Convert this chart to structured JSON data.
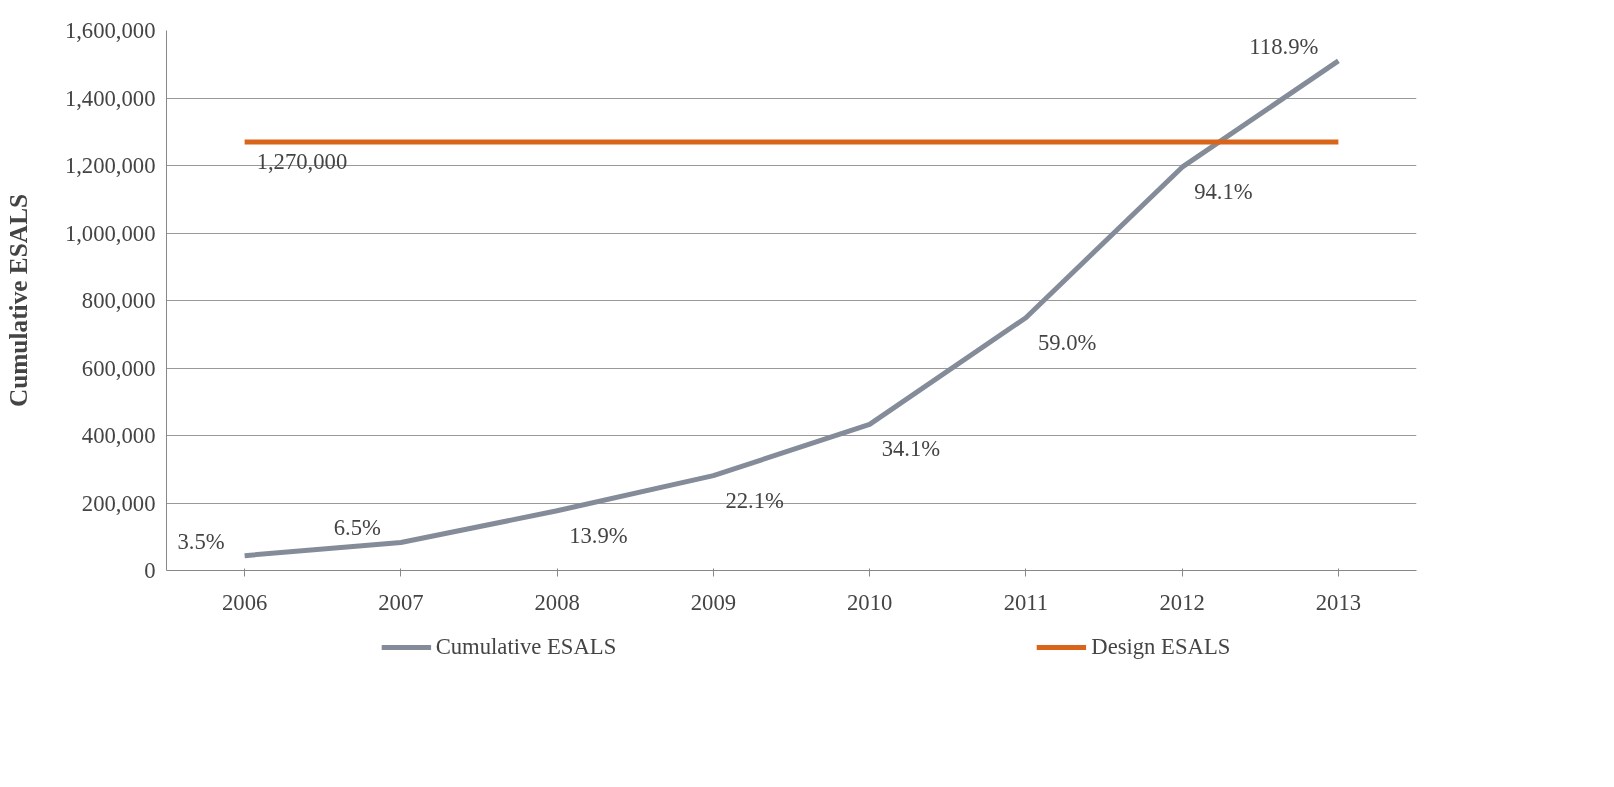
{
  "chart_data": {
    "type": "line",
    "ylabel": "Cumulative ESALS",
    "categories": [
      "2006",
      "2007",
      "2008",
      "2009",
      "2010",
      "2011",
      "2012",
      "2013"
    ],
    "series": [
      {
        "name": "Cumulative ESALS",
        "color": "#858c99",
        "values": [
          44000,
          83000,
          177000,
          281000,
          433000,
          749000,
          1195000,
          1510000
        ]
      },
      {
        "name": "Design ESALS",
        "color": "#d9651a",
        "values": [
          1270000,
          1270000,
          1270000,
          1270000,
          1270000,
          1270000,
          1270000,
          1270000
        ]
      }
    ],
    "annotations": [
      {
        "text": "3.5%",
        "x": "2006",
        "y": 44000
      },
      {
        "text": "6.5%",
        "x": "2007",
        "y": 83000
      },
      {
        "text": "13.9%",
        "x": "2008",
        "y": 177000
      },
      {
        "text": "22.1%",
        "x": "2009",
        "y": 281000
      },
      {
        "text": "34.1%",
        "x": "2010",
        "y": 433000
      },
      {
        "text": "59.0%",
        "x": "2011",
        "y": 749000
      },
      {
        "text": "94.1%",
        "x": "2012",
        "y": 1195000
      },
      {
        "text": "118.9%",
        "x": "2013",
        "y": 1510000
      },
      {
        "text": "1,270,000",
        "x": "2006",
        "y": 1270000
      }
    ],
    "ylim": [
      0,
      1600000
    ],
    "yticks": [
      {
        "value": 0,
        "label": "0"
      },
      {
        "value": 200000,
        "label": "200,000"
      },
      {
        "value": 400000,
        "label": "400,000"
      },
      {
        "value": 600000,
        "label": "600,000"
      },
      {
        "value": 800000,
        "label": "800,000"
      },
      {
        "value": 1000000,
        "label": "1,000,000"
      },
      {
        "value": 1200000,
        "label": "1,200,000"
      },
      {
        "value": 1400000,
        "label": "1,400,000"
      },
      {
        "value": 1600000,
        "label": "1,600,000"
      }
    ],
    "grid": "y",
    "legend": "bottom",
    "marker": "none",
    "line_style": "solid"
  }
}
